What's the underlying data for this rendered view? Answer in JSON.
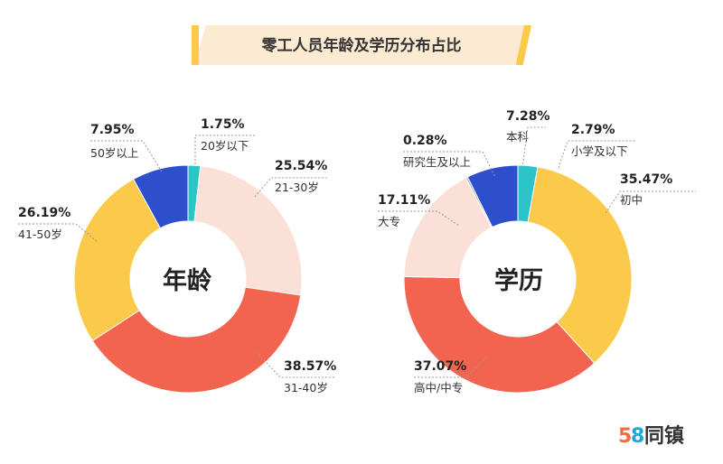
{
  "title": "零工人员年龄及学历分布占比",
  "brand": {
    "num5": "5",
    "num8": "8",
    "text": "同镇",
    "color5": "#f26d3d",
    "color8": "#1ea6d8",
    "colorText": "#333333"
  },
  "chart_data": [
    {
      "type": "pie",
      "donut": true,
      "center_label": "年龄",
      "slices": [
        {
          "label": "20岁以下",
          "value": 1.75,
          "value_text": "1.75%",
          "color": "#2bc4c8"
        },
        {
          "label": "21-30岁",
          "value": 25.54,
          "value_text": "25.54%",
          "color": "#fbe0d8"
        },
        {
          "label": "31-40岁",
          "value": 38.57,
          "value_text": "38.57%",
          "color": "#f26450"
        },
        {
          "label": "41-50岁",
          "value": 26.19,
          "value_text": "26.19%",
          "color": "#fcca4a"
        },
        {
          "label": "50岁以上",
          "value": 7.95,
          "value_text": "7.95%",
          "color": "#2e4fcc"
        }
      ]
    },
    {
      "type": "pie",
      "donut": true,
      "center_label": "学历",
      "slices": [
        {
          "label": "小学及以下",
          "value": 2.79,
          "value_text": "2.79%",
          "color": "#2bc4c8"
        },
        {
          "label": "初中",
          "value": 35.47,
          "value_text": "35.47%",
          "color": "#fcca4a"
        },
        {
          "label": "高中/中专",
          "value": 37.07,
          "value_text": "37.07%",
          "color": "#f26450"
        },
        {
          "label": "大专",
          "value": 17.11,
          "value_text": "17.11%",
          "color": "#fbe0d8"
        },
        {
          "label": "研究生及以上",
          "value": 0.28,
          "value_text": "0.28%",
          "color": "#a9b0bf"
        },
        {
          "label": "本科",
          "value": 7.28,
          "value_text": "7.28%",
          "color": "#2e4fcc"
        }
      ]
    }
  ]
}
